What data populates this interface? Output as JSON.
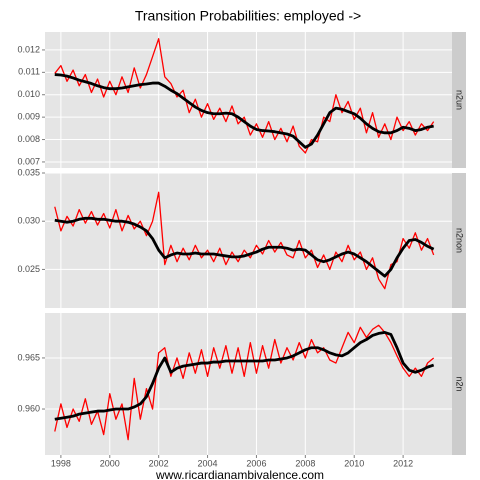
{
  "chart_data": [
    {
      "type": "line",
      "title": "Transition Probabilities: employed ->",
      "strip": "n2un",
      "x": [
        1997.75,
        1998,
        1998.25,
        1998.5,
        1998.75,
        1999,
        1999.25,
        1999.5,
        1999.75,
        2000,
        2000.25,
        2000.5,
        2000.75,
        2001,
        2001.25,
        2001.5,
        2001.75,
        2002,
        2002.25,
        2002.5,
        2002.75,
        2003,
        2003.25,
        2003.5,
        2003.75,
        2004,
        2004.25,
        2004.5,
        2004.75,
        2005,
        2005.25,
        2005.5,
        2005.75,
        2006,
        2006.25,
        2006.5,
        2006.75,
        2007,
        2007.25,
        2007.5,
        2007.75,
        2008,
        2008.25,
        2008.5,
        2008.75,
        2009,
        2009.25,
        2009.5,
        2009.75,
        2010,
        2010.25,
        2010.5,
        2010.75,
        2011,
        2011.25,
        2011.5,
        2011.75,
        2012,
        2012.25,
        2012.5,
        2012.75,
        2013,
        2013.25
      ],
      "ylim": [
        0.00673,
        0.0128
      ],
      "yticks": [
        0.007,
        0.008,
        0.009,
        {
          "value": 0.01,
          "label": "0.010"
        },
        0.011,
        0.012
      ],
      "grid": true,
      "series": [
        {
          "color": "#ff0000",
          "values": [
            0.01095,
            0.0113,
            0.0106,
            0.0111,
            0.0104,
            0.0109,
            0.0101,
            0.0107,
            0.0099,
            0.0106,
            0.01,
            0.0108,
            0.0101,
            0.0112,
            0.0103,
            0.0109,
            0.0117,
            0.0125,
            0.0108,
            0.0105,
            0.0099,
            0.0102,
            0.0092,
            0.0098,
            0.009,
            0.0096,
            0.0089,
            0.0094,
            0.0088,
            0.0095,
            0.0087,
            0.009,
            0.0082,
            0.0087,
            0.0081,
            0.0088,
            0.008,
            0.0085,
            0.0079,
            0.0086,
            0.0077,
            0.0074,
            0.008,
            0.0079,
            0.009,
            0.0088,
            0.01,
            0.0092,
            0.0097,
            0.0089,
            0.0094,
            0.0083,
            0.0092,
            0.0081,
            0.0087,
            0.008,
            0.009,
            0.0084,
            0.0088,
            0.0082,
            0.0087,
            0.0084,
            0.0088
          ]
        },
        {
          "color": "#000000",
          "values": [
            0.0109,
            0.01088,
            0.01083,
            0.01075,
            0.01065,
            0.01058,
            0.0105,
            0.0104,
            0.01032,
            0.01027,
            0.01027,
            0.0103,
            0.01035,
            0.0104,
            0.01045,
            0.01048,
            0.01052,
            0.01052,
            0.01038,
            0.0102,
            0.01005,
            0.00985,
            0.00965,
            0.00945,
            0.0093,
            0.0092,
            0.00915,
            0.00915,
            0.00918,
            0.00915,
            0.009,
            0.0088,
            0.0086,
            0.00845,
            0.0084,
            0.00838,
            0.00835,
            0.0083,
            0.00825,
            0.00815,
            0.0079,
            0.00765,
            0.0078,
            0.0082,
            0.0087,
            0.0092,
            0.0094,
            0.00935,
            0.00925,
            0.00915,
            0.00895,
            0.0087,
            0.0085,
            0.00835,
            0.0083,
            0.0083,
            0.0084,
            0.00855,
            0.0085,
            0.0084,
            0.00845,
            0.00855,
            0.0086
          ]
        }
      ]
    },
    {
      "type": "line",
      "strip": "n2non",
      "ylim": [
        0.021,
        0.035
      ],
      "yticks": [
        0.025,
        {
          "value": 0.03,
          "label": "0.030"
        },
        0.035
      ],
      "grid": true,
      "series": [
        {
          "color": "#ff0000",
          "values": [
            0.0315,
            0.029,
            0.0305,
            0.0295,
            0.0312,
            0.0298,
            0.031,
            0.0296,
            0.0308,
            0.0293,
            0.0312,
            0.029,
            0.0306,
            0.0292,
            0.03,
            0.0285,
            0.03,
            0.033,
            0.0255,
            0.0275,
            0.0258,
            0.0272,
            0.026,
            0.0275,
            0.0262,
            0.027,
            0.0258,
            0.0272,
            0.0255,
            0.0268,
            0.0258,
            0.027,
            0.0262,
            0.0275,
            0.0266,
            0.028,
            0.0268,
            0.0278,
            0.0265,
            0.0262,
            0.028,
            0.0262,
            0.027,
            0.0252,
            0.0265,
            0.025,
            0.0268,
            0.0258,
            0.0275,
            0.026,
            0.0268,
            0.025,
            0.0262,
            0.024,
            0.023,
            0.0255,
            0.0258,
            0.0282,
            0.0272,
            0.0288,
            0.027,
            0.0282,
            0.0265
          ]
        },
        {
          "color": "#000000",
          "values": [
            0.0301,
            0.03,
            0.0299,
            0.03,
            0.0302,
            0.0303,
            0.0303,
            0.0302,
            0.0302,
            0.0301,
            0.03,
            0.03,
            0.0299,
            0.0297,
            0.0294,
            0.029,
            0.0282,
            0.027,
            0.0262,
            0.0265,
            0.0267,
            0.0266,
            0.0266,
            0.0267,
            0.0266,
            0.0266,
            0.0266,
            0.0265,
            0.0264,
            0.0263,
            0.0263,
            0.0264,
            0.0266,
            0.0268,
            0.0271,
            0.0273,
            0.0273,
            0.0273,
            0.0272,
            0.027,
            0.0271,
            0.027,
            0.0265,
            0.026,
            0.0258,
            0.026,
            0.0263,
            0.0266,
            0.0268,
            0.0266,
            0.0262,
            0.0258,
            0.0253,
            0.0248,
            0.0243,
            0.025,
            0.0262,
            0.0272,
            0.028,
            0.0281,
            0.0278,
            0.0274,
            0.0271
          ]
        }
      ]
    },
    {
      "type": "line",
      "strip": "n2n",
      "xlabel": "www.ricardianambivalence.com",
      "xlim": [
        1997.35,
        2014.0
      ],
      "xticks": [
        1998,
        2000,
        2002,
        2004,
        2006,
        2008,
        2010,
        2012
      ],
      "ylim": [
        0.9555,
        0.9694
      ],
      "yticks": [
        {
          "value": 0.96,
          "label": "0.960"
        },
        0.965
      ],
      "grid": true,
      "series": [
        {
          "color": "#ff0000",
          "values": [
            0.9578,
            0.9605,
            0.9582,
            0.96,
            0.9588,
            0.961,
            0.9585,
            0.9598,
            0.9575,
            0.9615,
            0.959,
            0.9605,
            0.957,
            0.963,
            0.959,
            0.962,
            0.96,
            0.9655,
            0.966,
            0.9632,
            0.965,
            0.963,
            0.9655,
            0.9635,
            0.9658,
            0.9632,
            0.966,
            0.964,
            0.9662,
            0.9635,
            0.966,
            0.9632,
            0.9665,
            0.9635,
            0.9662,
            0.964,
            0.9668,
            0.9645,
            0.966,
            0.9648,
            0.9665,
            0.965,
            0.9668,
            0.9655,
            0.966,
            0.9648,
            0.9645,
            0.966,
            0.9675,
            0.9665,
            0.968,
            0.967,
            0.9678,
            0.9682,
            0.9675,
            0.9665,
            0.9652,
            0.964,
            0.9632,
            0.964,
            0.9632,
            0.9645,
            0.965
          ]
        },
        {
          "color": "#000000",
          "values": [
            0.959,
            0.9591,
            0.9592,
            0.9593,
            0.9595,
            0.9596,
            0.9597,
            0.9598,
            0.9598,
            0.9599,
            0.96,
            0.96,
            0.96,
            0.9602,
            0.9605,
            0.9612,
            0.9625,
            0.964,
            0.965,
            0.9636,
            0.964,
            0.9642,
            0.9643,
            0.9644,
            0.9645,
            0.9645,
            0.9646,
            0.9646,
            0.9647,
            0.9647,
            0.9647,
            0.9647,
            0.9647,
            0.9647,
            0.9647,
            0.9648,
            0.9648,
            0.9649,
            0.965,
            0.9652,
            0.9655,
            0.9658,
            0.966,
            0.966,
            0.9658,
            0.9655,
            0.9653,
            0.9652,
            0.9655,
            0.966,
            0.9665,
            0.9668,
            0.9672,
            0.9674,
            0.9675,
            0.9673,
            0.966,
            0.9645,
            0.9638,
            0.9636,
            0.9638,
            0.9641,
            0.9643
          ]
        }
      ]
    }
  ]
}
